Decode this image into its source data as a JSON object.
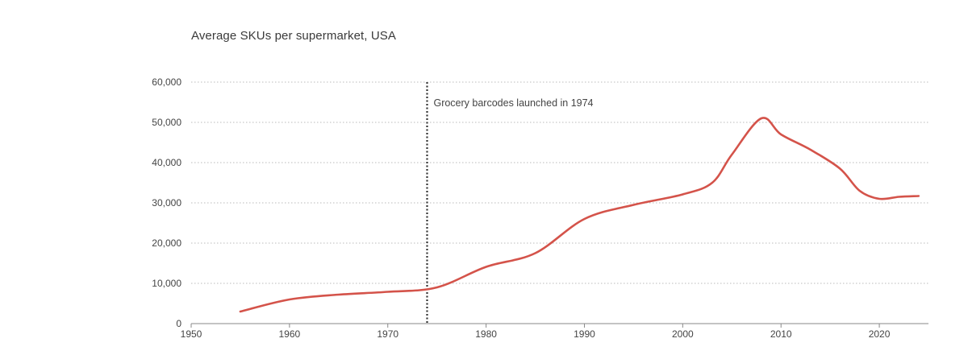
{
  "chart_data": {
    "type": "line",
    "title": "Average SKUs per supermarket, USA",
    "xlabel": "",
    "ylabel": "",
    "xlim": [
      1950,
      2025
    ],
    "ylim": [
      0,
      60000
    ],
    "x_ticks": [
      1950,
      1960,
      1970,
      1980,
      1990,
      2000,
      2010,
      2020
    ],
    "y_ticks": [
      0,
      10000,
      20000,
      30000,
      40000,
      50000,
      60000
    ],
    "y_tick_labels": [
      "0",
      "10,000",
      "20,000",
      "30,000",
      "40,000",
      "50,000",
      "60,000"
    ],
    "grid": "horizontal-dotted",
    "line_color": "#d4534a",
    "series": [
      {
        "x": [
          1955,
          1960,
          1965,
          1970,
          1975,
          1980,
          1985,
          1990,
          1995,
          2000,
          2003,
          2005,
          2008,
          2010,
          2013,
          2016,
          2018,
          2020,
          2022,
          2024
        ],
        "values": [
          3000,
          6000,
          7200,
          7900,
          9000,
          14100,
          17500,
          26000,
          29500,
          32100,
          35000,
          42000,
          51000,
          47000,
          43200,
          38500,
          33000,
          31000,
          31500,
          31700
        ]
      }
    ],
    "annotations": [
      {
        "x": 1974,
        "text": "Grocery barcodes launched in 1974",
        "style": "dotted-vertical-line"
      }
    ]
  }
}
